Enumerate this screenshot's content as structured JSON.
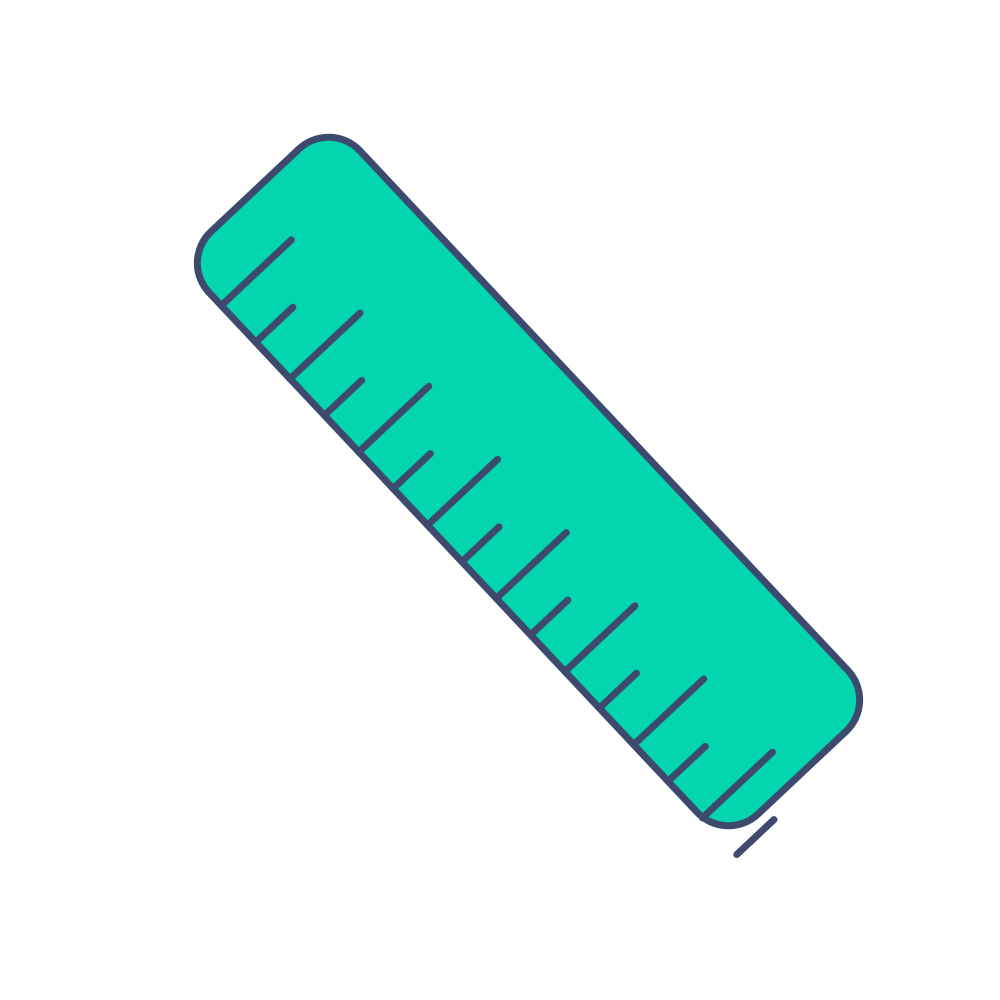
{
  "icon": {
    "name": "ruler-icon",
    "fill_color": "#03d6ae",
    "stroke_color": "#3d4a6e",
    "background_color": "#ffffff",
    "tick_count": 16,
    "tick_pattern": [
      "long",
      "short"
    ]
  }
}
